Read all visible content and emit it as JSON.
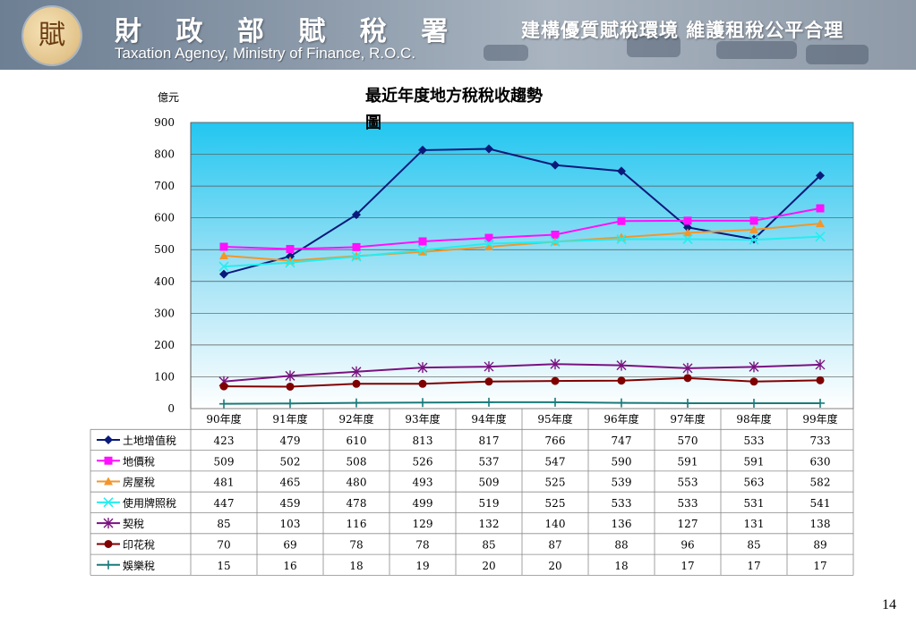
{
  "header": {
    "agency_cn": "財 政 部 賦 稅 署",
    "agency_en": "Taxation Agency, Ministry of Finance, R.O.C.",
    "slogan": "建構優質賦稅環境 維護租稅公平合理",
    "logo_glyph": "賦"
  },
  "page_number": "14",
  "chart_data": {
    "type": "line",
    "title": "最近年度地方稅稅收趨勢圖",
    "ylabel": "億元",
    "xlabel": "",
    "ylim": [
      0,
      900
    ],
    "yticks": [
      0,
      100,
      200,
      300,
      400,
      500,
      600,
      700,
      800,
      900
    ],
    "grid": true,
    "legend": "data-table",
    "categories": [
      "90年度",
      "91年度",
      "92年度",
      "93年度",
      "94年度",
      "95年度",
      "96年度",
      "97年度",
      "98年度",
      "99年度"
    ],
    "series": [
      {
        "name": "土地增值稅",
        "color": "#0a1a7a",
        "marker": "diamond",
        "values": [
          423,
          479,
          610,
          813,
          817,
          766,
          747,
          570,
          533,
          733
        ]
      },
      {
        "name": "地價稅",
        "color": "#ff10ff",
        "marker": "square",
        "values": [
          509,
          502,
          508,
          526,
          537,
          547,
          590,
          591,
          591,
          630
        ]
      },
      {
        "name": "房屋稅",
        "color": "#f2962b",
        "marker": "triangle",
        "values": [
          481,
          465,
          480,
          493,
          509,
          525,
          539,
          553,
          563,
          582
        ]
      },
      {
        "name": "使用牌照稅",
        "color": "#22eef0",
        "marker": "x",
        "values": [
          447,
          459,
          478,
          499,
          519,
          525,
          533,
          533,
          531,
          541
        ]
      },
      {
        "name": "契稅",
        "color": "#7a1280",
        "marker": "star",
        "values": [
          85,
          103,
          116,
          129,
          132,
          140,
          136,
          127,
          131,
          138
        ]
      },
      {
        "name": "印花稅",
        "color": "#800000",
        "marker": "circle",
        "values": [
          70,
          69,
          78,
          78,
          85,
          87,
          88,
          96,
          85,
          89
        ]
      },
      {
        "name": "娛樂稅",
        "color": "#1a7a7a",
        "marker": "plus",
        "values": [
          15,
          16,
          18,
          19,
          20,
          20,
          18,
          17,
          17,
          17
        ]
      }
    ]
  }
}
